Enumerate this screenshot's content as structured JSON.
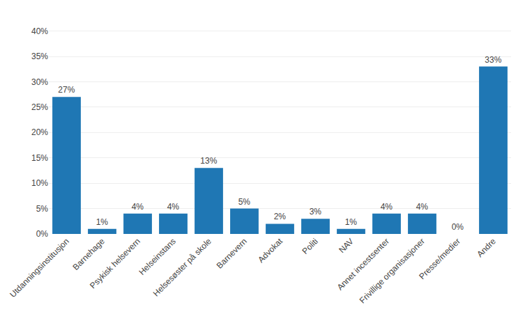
{
  "chart_data": {
    "type": "bar",
    "categories": [
      "Utdanningsinstitusjon",
      "Barnehage",
      "Psykisk helsevern",
      "Helseinstans",
      "Helsesøster på skole",
      "Barnevern",
      "Advokat",
      "Politi",
      "NAV",
      "Annet incestsenter",
      "Frivillige organisasjoner",
      "Presse/medier",
      "Andre"
    ],
    "values": [
      27,
      1,
      4,
      4,
      13,
      5,
      2,
      3,
      1,
      4,
      4,
      0,
      33
    ],
    "value_labels": [
      "27%",
      "1%",
      "4%",
      "4%",
      "13%",
      "5%",
      "2%",
      "3%",
      "1%",
      "4%",
      "4%",
      "0%",
      "33%"
    ],
    "data_labels": true,
    "ylim": [
      0,
      42
    ],
    "yticks": [
      {
        "value": 0,
        "label": "0%"
      },
      {
        "value": 5,
        "label": "5%"
      },
      {
        "value": 10,
        "label": "10%"
      },
      {
        "value": 15,
        "label": "15%"
      },
      {
        "value": 20,
        "label": "20%"
      },
      {
        "value": 25,
        "label": "25%"
      },
      {
        "value": 30,
        "label": "30%"
      },
      {
        "value": 35,
        "label": "35%"
      },
      {
        "value": 40,
        "label": "40%"
      }
    ],
    "grid": true
  }
}
